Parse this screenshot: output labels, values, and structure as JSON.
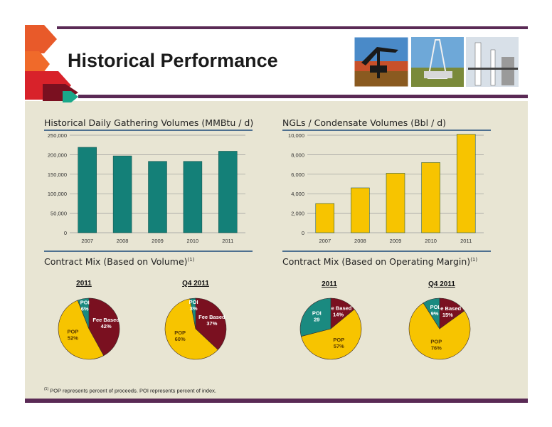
{
  "slide": {
    "title": "Historical Performance",
    "footnote_marker": "(1)",
    "footnote_text": "POP represents percent of proceeds. POI represents percent of index."
  },
  "colors": {
    "purple": "#5a2a55",
    "teal": "#1a8a80",
    "yellow": "#f7c400",
    "maroon": "#7a1020",
    "panel": "#e8e5d3"
  },
  "photos": [
    "pumpjack-photo",
    "drilling-rig-photo",
    "processing-plant-photo"
  ],
  "chart_data": [
    {
      "type": "bar",
      "title": "Historical Daily Gathering Volumes (MMBtu / d)",
      "categories": [
        "2007",
        "2008",
        "2009",
        "2010",
        "2011"
      ],
      "values": [
        219000,
        197000,
        183000,
        183000,
        209000
      ],
      "ylim": [
        0,
        250000
      ],
      "yticks": [
        "0",
        "50,000",
        "100,000",
        "150,000",
        "200,000",
        "250,000"
      ],
      "ytick_values": [
        0,
        50000,
        100000,
        150000,
        200000,
        250000
      ],
      "color": "#148078",
      "grid": true
    },
    {
      "type": "bar",
      "title": "NGLs / Condensate Volumes (Bbl / d)",
      "categories": [
        "2007",
        "2008",
        "2009",
        "2010",
        "2011"
      ],
      "values": [
        3000,
        4600,
        6100,
        7200,
        10100
      ],
      "ylim": [
        0,
        10000
      ],
      "yticks": [
        "0",
        "2,000",
        "4,000",
        "6,000",
        "8,000",
        "10,000"
      ],
      "ytick_values": [
        0,
        2000,
        4000,
        6000,
        8000,
        10000
      ],
      "color": "#f7c400",
      "grid": true
    },
    {
      "type": "pie",
      "group_title": "Contract Mix (Based on Volume)",
      "group_title_sup": "(1)",
      "pies": [
        {
          "title": "2011",
          "slices": [
            {
              "name": "Fee Based",
              "value": 42,
              "label": "Fee Based\n42%",
              "color": "#7a1020",
              "text_color": "#ffffff"
            },
            {
              "name": "POP",
              "value": 52,
              "label": "POP\n52%",
              "color": "#f7c400",
              "text_color": "#5a3a00"
            },
            {
              "name": "POI",
              "value": 6,
              "label": "POI\n6%",
              "color": "#1a8a80",
              "text_color": "#ffffff"
            }
          ]
        },
        {
          "title": "Q4 2011",
          "slices": [
            {
              "name": "Fee Based",
              "value": 37,
              "label": "Fee Based\n37%",
              "color": "#7a1020",
              "text_color": "#ffffff"
            },
            {
              "name": "POP",
              "value": 60,
              "label": "POP\n60%",
              "color": "#f7c400",
              "text_color": "#5a3a00"
            },
            {
              "name": "POI",
              "value": 3,
              "label": "POI\n3%",
              "color": "#1a8a80",
              "text_color": "#ffffff"
            }
          ]
        }
      ]
    },
    {
      "type": "pie",
      "group_title": "Contract Mix (Based on Operating Margin)",
      "group_title_sup": "(1)",
      "pies": [
        {
          "title": "2011",
          "slices": [
            {
              "name": "Fee Based",
              "value": 14,
              "label": "Fee Based\n14%",
              "color": "#7a1020",
              "text_color": "#ffffff"
            },
            {
              "name": "POP",
              "value": 57,
              "label": "POP\n57%",
              "color": "#f7c400",
              "text_color": "#5a3a00"
            },
            {
              "name": "POI",
              "value": 29,
              "label": "POI\n29",
              "color": "#1a8a80",
              "text_color": "#ffffff"
            }
          ]
        },
        {
          "title": "Q4 2011",
          "slices": [
            {
              "name": "Fee Based",
              "value": 15,
              "label": "Fee Based\n15%",
              "color": "#7a1020",
              "text_color": "#ffffff"
            },
            {
              "name": "POP",
              "value": 76,
              "label": "POP\n76%",
              "color": "#f7c400",
              "text_color": "#5a3a00"
            },
            {
              "name": "POI",
              "value": 9,
              "label": "POI\n9%",
              "color": "#1a8a80",
              "text_color": "#ffffff"
            }
          ]
        }
      ]
    }
  ]
}
